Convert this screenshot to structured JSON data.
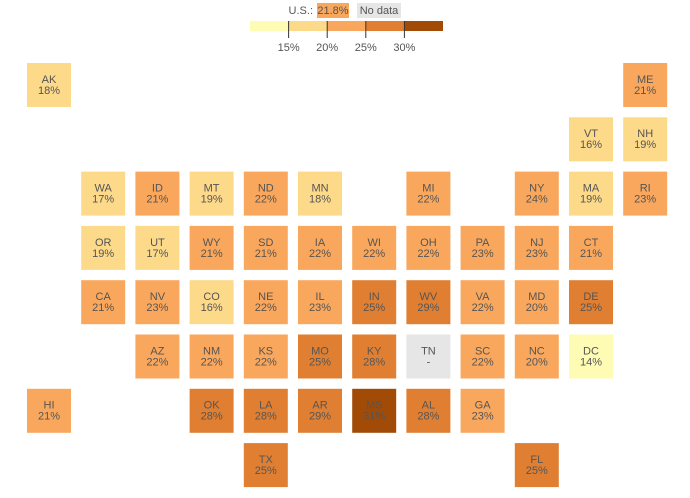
{
  "chart_data": {
    "type": "tilemap",
    "legend": {
      "us_text": "U.S.:",
      "us_value": 21.8,
      "us_label": "21.8%",
      "no_data": "No data",
      "no_data_color": "#e6e6e6",
      "colors": [
        "#fefcb4",
        "#fdd98a",
        "#f9a75c",
        "#e07f32",
        "#a24b06"
      ],
      "ticks": [
        {
          "value": 15,
          "label": "15%"
        },
        {
          "value": 20,
          "label": "20%"
        },
        {
          "value": 25,
          "label": "25%"
        },
        {
          "value": 30,
          "label": "30%"
        }
      ]
    },
    "categories": [
      "AK",
      "ME",
      "VT",
      "NH",
      "WA",
      "ID",
      "MT",
      "ND",
      "MN",
      "MI",
      "NY",
      "MA",
      "RI",
      "OR",
      "UT",
      "WY",
      "SD",
      "IA",
      "WI",
      "OH",
      "PA",
      "NJ",
      "CT",
      "CA",
      "NV",
      "CO",
      "NE",
      "IL",
      "IN",
      "WV",
      "VA",
      "MD",
      "DE",
      "AZ",
      "NM",
      "KS",
      "MO",
      "KY",
      "TN",
      "SC",
      "NC",
      "DC",
      "HI",
      "OK",
      "LA",
      "AR",
      "MS",
      "AL",
      "GA",
      "TX",
      "FL"
    ],
    "values": [
      18,
      21,
      16,
      19,
      17,
      21,
      19,
      22,
      18,
      22,
      24,
      19,
      23,
      19,
      17,
      21,
      21,
      22,
      22,
      22,
      23,
      23,
      21,
      21,
      23,
      16,
      22,
      23,
      25,
      29,
      22,
      20,
      25,
      22,
      22,
      22,
      25,
      28,
      null,
      22,
      20,
      14,
      21,
      28,
      28,
      29,
      31,
      28,
      23,
      25,
      25
    ],
    "value_labels": [
      "18%",
      "21%",
      "16%",
      "19%",
      "17%",
      "21%",
      "19%",
      "22%",
      "18%",
      "22%",
      "24%",
      "19%",
      "23%",
      "19%",
      "17%",
      "21%",
      "21%",
      "22%",
      "22%",
      "22%",
      "23%",
      "23%",
      "21%",
      "21%",
      "23%",
      "16%",
      "22%",
      "23%",
      "25%",
      "29%",
      "22%",
      "20%",
      "25%",
      "22%",
      "22%",
      "22%",
      "25%",
      "28%",
      "-",
      "22%",
      "20%",
      "14%",
      "21%",
      "28%",
      "28%",
      "29%",
      "31%",
      "28%",
      "23%",
      "25%",
      "25%"
    ]
  }
}
